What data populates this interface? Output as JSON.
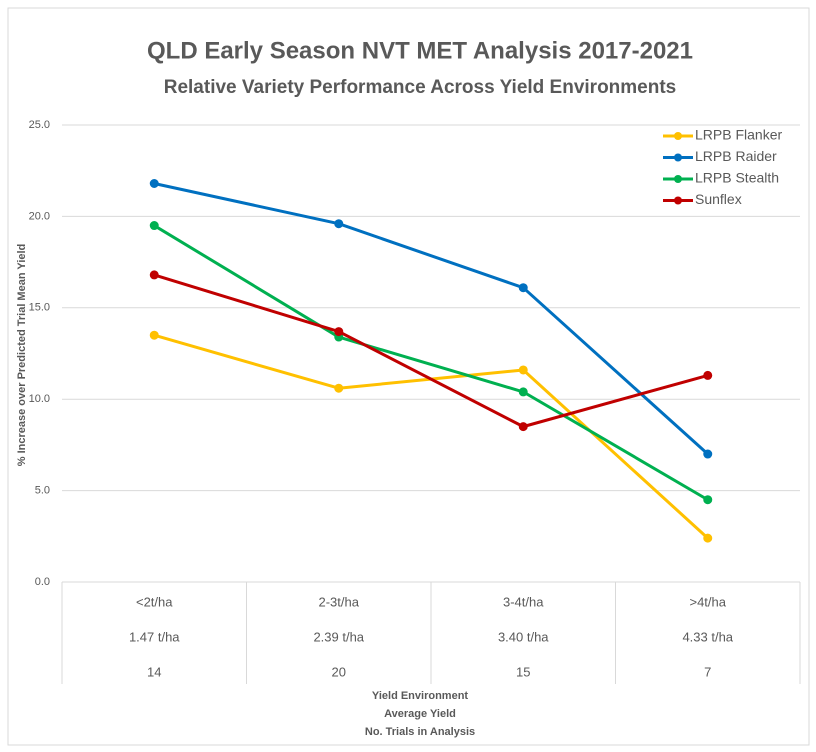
{
  "chart_data": {
    "type": "line",
    "title": "QLD Early Season NVT MET Analysis 2017-2021",
    "subtitle": "Relative Variety Performance Across Yield Environments",
    "y_label": "% Increase over Predicted Trial Mean Yield",
    "x_label": [
      "Yield Environment",
      "Average Yield",
      "No. Trials in Analysis"
    ],
    "categories": [
      "<2t/ha",
      "2-3t/ha",
      "3-4t/ha",
      ">4t/ha"
    ],
    "average_yield": [
      "1.47 t/ha",
      "2.39 t/ha",
      "3.40 t/ha",
      "4.33 t/ha"
    ],
    "trials": [
      14,
      20,
      15,
      7
    ],
    "series": [
      {
        "name": "LRPB Flanker",
        "color": "#ffc000",
        "values": [
          13.5,
          10.6,
          11.6,
          2.4
        ]
      },
      {
        "name": "LRPB Raider",
        "color": "#0070c0",
        "values": [
          21.8,
          19.6,
          16.1,
          7.0
        ]
      },
      {
        "name": "LRPB Stealth",
        "color": "#00b050",
        "values": [
          19.5,
          13.4,
          10.4,
          4.5
        ]
      },
      {
        "name": "Sunflex",
        "color": "#c00000",
        "values": [
          16.8,
          13.7,
          8.5,
          11.3
        ]
      }
    ],
    "ylim": [
      0,
      25
    ],
    "yticks": [
      {
        "value": 0,
        "label": "0.0"
      },
      {
        "value": 5,
        "label": "5.0"
      },
      {
        "value": 10,
        "label": "10.0"
      },
      {
        "value": 15,
        "label": "15.0"
      },
      {
        "value": 20,
        "label": "20.0"
      },
      {
        "value": 25,
        "label": "25.0"
      }
    ],
    "grid": true,
    "legend": "top-right"
  }
}
